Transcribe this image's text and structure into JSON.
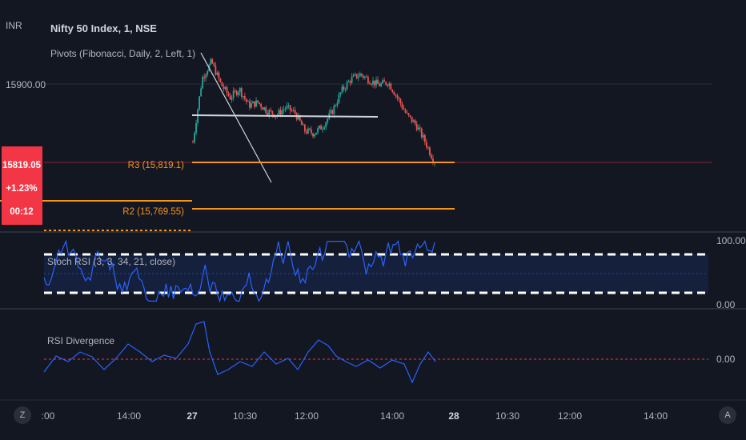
{
  "currency": "INR",
  "symbol_title": "Nifty 50 Index, 1, NSE",
  "pivots_legend": "Pivots (Fibonacci, Daily, 2, Left, 1)",
  "price_badge": {
    "price": "15819.05",
    "change": "+1.23%",
    "countdown": "00:12",
    "color": "#f23645"
  },
  "buttons": {
    "zoom": "Z",
    "auto": "A"
  },
  "price_axis": {
    "label_15900": "15900.00"
  },
  "pivot_levels": [
    {
      "name": "R3",
      "label": "R3 (15,819.1)",
      "value": 15819.1,
      "color": "#f7931a"
    },
    {
      "name": "R2",
      "label": "R2 (15,769.55)",
      "value": 15769.55,
      "color": "#f7931a"
    }
  ],
  "stoch_rsi": {
    "legend": "Stoch RSI (3, 3, 34, 21, close)",
    "axis_top": "100.00",
    "axis_bottom": "0.00",
    "band_color": "#2962ff",
    "line_color": "#2962ff"
  },
  "rsi_divergence": {
    "legend": "RSI Divergence",
    "axis_zero": "0.00",
    "line_color": "#2962ff",
    "zero_line_color": "#f23645"
  },
  "time_axis": [
    ":00",
    "14:00",
    "27",
    "10:30",
    "12:00",
    "14:00",
    "28",
    "10:30",
    "12:00",
    "14:00"
  ],
  "chart_data": {
    "type": "line",
    "title": "Nifty 50 Index, 1, NSE",
    "ylabel": "INR",
    "candles_color_up": "#26a69a",
    "candles_color_down": "#ef5350",
    "price_series": [
      15840,
      15906,
      15923,
      15900,
      15886,
      15895,
      15878,
      15881,
      15872,
      15868,
      15876,
      15870,
      15852,
      15849,
      15857,
      15872,
      15893,
      15905,
      15910,
      15904,
      15899,
      15902,
      15886,
      15868,
      15858,
      15840,
      15819
    ],
    "last_price": 15819.05,
    "change_pct": "+1.23%",
    "trendline_from": [
      15923,
      15785
    ],
    "support_level": 15874,
    "stoch_rsi_upper_band": 80,
    "stoch_rsi_lower_band": 20
  }
}
